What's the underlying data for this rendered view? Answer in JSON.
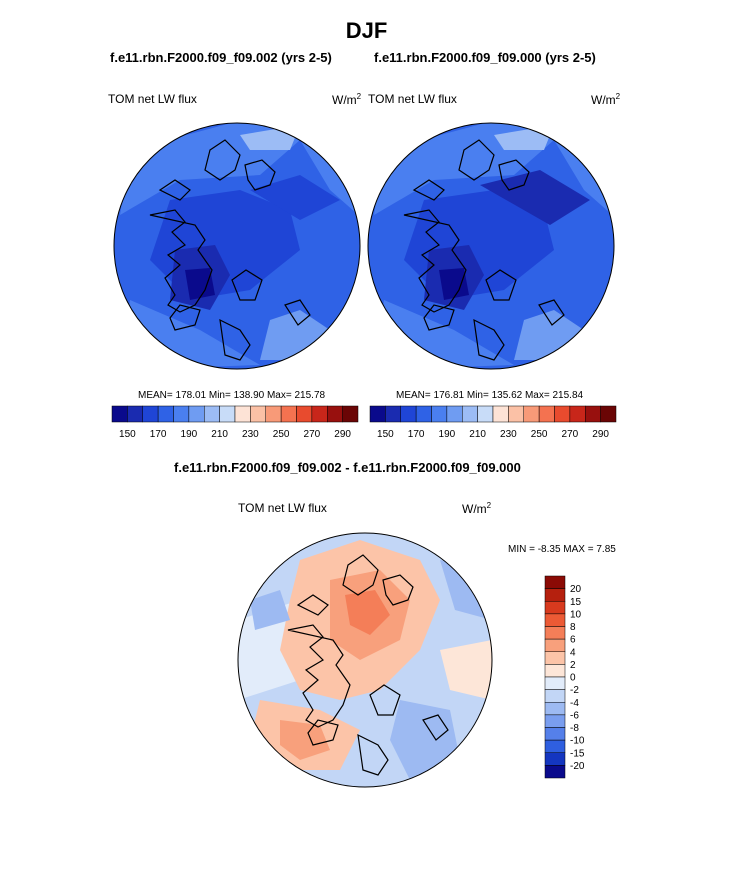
{
  "page_title": "DJF",
  "panels": [
    {
      "run": "f.e11.rbn.F2000.f09_f09.002 (yrs 2-5)",
      "var": "TOM net LW flux",
      "units": "W/m",
      "units_exp": "2",
      "stats": "MEAN= 178.01  Min= 138.90  Max= 215.78"
    },
    {
      "run": "f.e11.rbn.F2000.f09_f09.000 (yrs 2-5)",
      "var": "TOM net LW flux",
      "units": "W/m",
      "units_exp": "2",
      "stats": "MEAN= 176.81  Min= 135.62  Max= 215.84"
    }
  ],
  "diff": {
    "title": "f.e11.rbn.F2000.f09_f09.002 - f.e11.rbn.F2000.f09_f09.000",
    "var": "TOM net LW flux",
    "units": "W/m",
    "units_exp": "2",
    "minmax": "MIN =  -8.35 MAX =   7.85"
  },
  "chart_data": [
    {
      "type": "heatmap",
      "projection": "north-polar-stereographic",
      "title": "f.e11.rbn.F2000.f09_f09.002 (yrs 2-5)",
      "variable": "TOM net LW flux",
      "units": "W/m2",
      "mean": 178.01,
      "min": 138.9,
      "max": 215.78,
      "colorbar_levels": [
        150,
        170,
        190,
        210,
        230,
        250,
        270,
        290
      ],
      "colorbar_colors": [
        "#0a0a8c",
        "#1a2bb0",
        "#1f45d6",
        "#2f62e6",
        "#4a7ff0",
        "#6f9cf2",
        "#9cbcf5",
        "#c8dcf8",
        "#fde3d6",
        "#fbc1a6",
        "#f89a78",
        "#f47250",
        "#e84b2e",
        "#c8261a",
        "#98100e",
        "#6a0505"
      ]
    },
    {
      "type": "heatmap",
      "projection": "north-polar-stereographic",
      "title": "f.e11.rbn.F2000.f09_f09.000 (yrs 2-5)",
      "variable": "TOM net LW flux",
      "units": "W/m2",
      "mean": 176.81,
      "min": 135.62,
      "max": 215.84,
      "colorbar_levels": [
        150,
        170,
        190,
        210,
        230,
        250,
        270,
        290
      ],
      "colorbar_colors": [
        "#0a0a8c",
        "#1a2bb0",
        "#1f45d6",
        "#2f62e6",
        "#4a7ff0",
        "#6f9cf2",
        "#9cbcf5",
        "#c8dcf8",
        "#fde3d6",
        "#fbc1a6",
        "#f89a78",
        "#f47250",
        "#e84b2e",
        "#c8261a",
        "#98100e",
        "#6a0505"
      ]
    },
    {
      "type": "heatmap",
      "projection": "north-polar-stereographic",
      "title": "f.e11.rbn.F2000.f09_f09.002 - f.e11.rbn.F2000.f09_f09.000",
      "variable": "TOM net LW flux",
      "units": "W/m2",
      "min": -8.35,
      "max": 7.85,
      "colorbar_levels": [
        20,
        15,
        10,
        8,
        6,
        4,
        2,
        0,
        -2,
        -4,
        -6,
        -8,
        -10,
        -15,
        -20
      ],
      "colorbar_colors": [
        "#8b0a05",
        "#b5200e",
        "#d83a1e",
        "#ec5a35",
        "#f47e58",
        "#f8a07c",
        "#fcc4a8",
        "#fde6d8",
        "#e2ecfa",
        "#c2d6f6",
        "#9dbaf2",
        "#7a9eef",
        "#5580ea",
        "#2f5fe0",
        "#1436c0",
        "#0a0a8c"
      ],
      "legend_position": "right"
    }
  ]
}
